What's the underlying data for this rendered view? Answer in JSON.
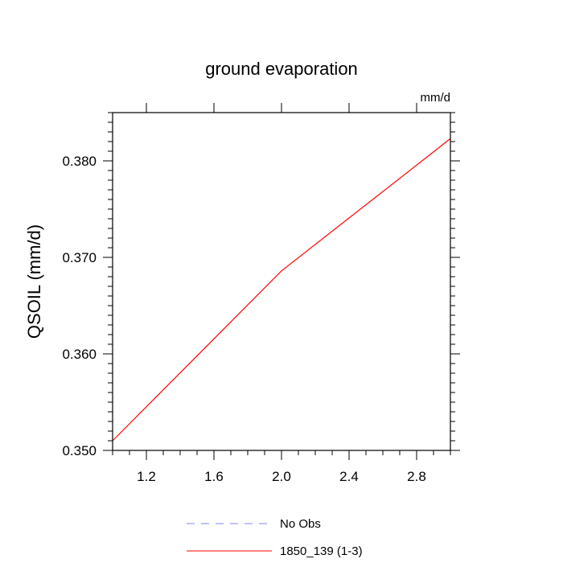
{
  "chart_data": {
    "type": "line",
    "title": "ground evaporation",
    "units_label": "mm/d",
    "xlabel": "",
    "ylabel": "QSOIL  (mm/d)",
    "xlim": [
      1.0,
      3.0
    ],
    "ylim": [
      0.35,
      0.385
    ],
    "xticks": [
      1.2,
      1.6,
      2.0,
      2.4,
      2.8
    ],
    "xtick_labels": [
      "1.2",
      "1.6",
      "2.0",
      "2.4",
      "2.8"
    ],
    "yticks": [
      0.35,
      0.36,
      0.37,
      0.38
    ],
    "ytick_labels": [
      "0.350",
      "0.360",
      "0.370",
      "0.380"
    ],
    "grid": false,
    "legend_position": "bottom",
    "series": [
      {
        "name": "No Obs",
        "color": "#8080ff",
        "style": "dashed",
        "x": [],
        "y": []
      },
      {
        "name": "1850_139 (1-3)",
        "color": "#ff0000",
        "style": "solid",
        "x": [
          1.0,
          2.0,
          3.0
        ],
        "y": [
          0.351,
          0.3686,
          0.3823
        ]
      }
    ]
  }
}
